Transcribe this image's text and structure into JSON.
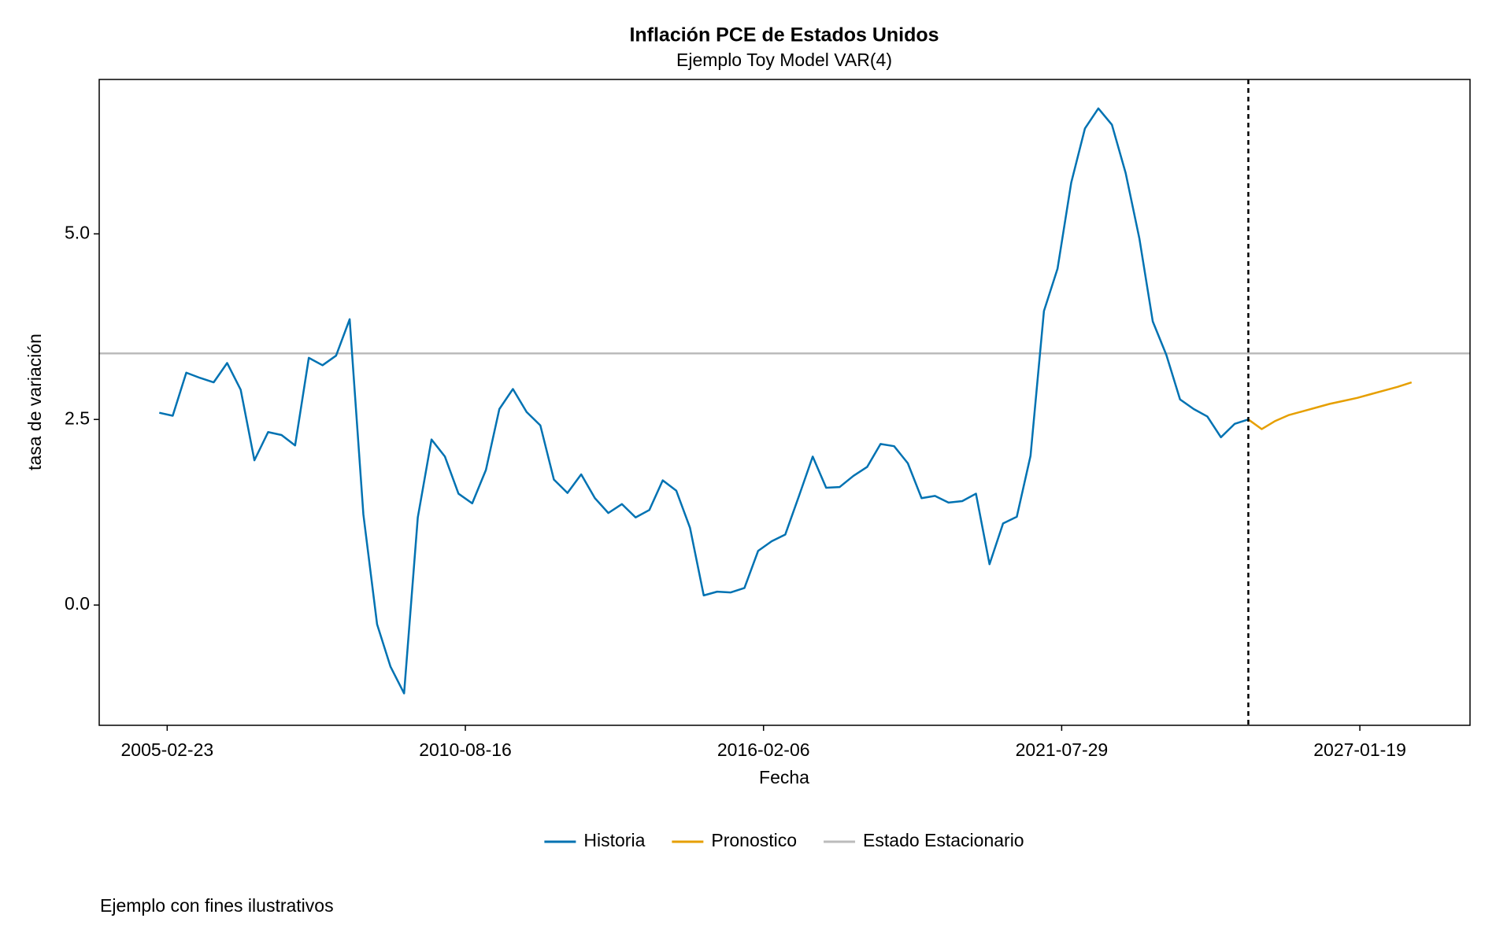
{
  "chart_data": {
    "type": "line",
    "title": "Inflación PCE de Estados Unidos",
    "subtitle": "Ejemplo Toy Model VAR(4)",
    "x_label": "Fecha",
    "y_label": "tasa de variación",
    "caption": "Ejemplo con fines ilustrativos",
    "xlim": [
      "2003-11-25",
      "2029-01-27"
    ],
    "xticks": [
      "2005-02-23",
      "2010-08-16",
      "2016-02-06",
      "2021-07-29",
      "2027-01-19"
    ],
    "ylim": [
      -1.62,
      7.08
    ],
    "yticks": [
      {
        "value": 0,
        "label": "0.0"
      },
      {
        "value": 2.5,
        "label": "2.5"
      },
      {
        "value": 5,
        "label": "5.0"
      }
    ],
    "forecast_start": "2025-01-01",
    "series": [
      {
        "name": "Historia",
        "color": "#0072b2",
        "x": [
          "2005-01-01",
          "2005-04-01",
          "2005-07-01",
          "2005-10-01",
          "2006-01-01",
          "2006-04-01",
          "2006-07-01",
          "2006-10-01",
          "2007-01-01",
          "2007-04-01",
          "2007-07-01",
          "2007-10-01",
          "2008-01-01",
          "2008-04-01",
          "2008-07-01",
          "2008-10-01",
          "2009-01-01",
          "2009-04-01",
          "2009-07-01",
          "2009-10-01",
          "2010-01-01",
          "2010-04-01",
          "2010-07-01",
          "2010-10-01",
          "2011-01-01",
          "2011-04-01",
          "2011-07-01",
          "2011-10-01",
          "2012-01-01",
          "2012-04-01",
          "2012-07-01",
          "2012-10-01",
          "2013-01-01",
          "2013-04-01",
          "2013-07-01",
          "2013-10-01",
          "2014-01-01",
          "2014-04-01",
          "2014-07-01",
          "2014-10-01",
          "2015-01-01",
          "2015-04-01",
          "2015-07-01",
          "2015-10-01",
          "2016-01-01",
          "2016-04-01",
          "2016-07-01",
          "2016-10-01",
          "2017-01-01",
          "2017-04-01",
          "2017-07-01",
          "2017-10-01",
          "2018-01-01",
          "2018-04-01",
          "2018-07-01",
          "2018-10-01",
          "2019-01-01",
          "2019-04-01",
          "2019-07-01",
          "2019-10-01",
          "2020-01-01",
          "2020-04-01",
          "2020-07-01",
          "2020-10-01",
          "2021-01-01",
          "2021-04-01",
          "2021-07-01",
          "2021-10-01",
          "2022-01-01",
          "2022-04-01",
          "2022-07-01",
          "2022-10-01",
          "2023-01-01",
          "2023-04-01",
          "2023-07-01",
          "2023-10-01",
          "2024-01-01",
          "2024-04-01",
          "2024-07-01",
          "2024-10-01",
          "2025-01-01"
        ],
        "values": [
          2.59,
          2.55,
          3.13,
          3.06,
          3.0,
          3.26,
          2.9,
          1.95,
          2.33,
          2.29,
          2.15,
          3.33,
          3.23,
          3.36,
          3.85,
          1.22,
          -0.26,
          -0.83,
          -1.19,
          1.18,
          2.23,
          2.0,
          1.5,
          1.37,
          1.82,
          2.64,
          2.91,
          2.6,
          2.42,
          1.69,
          1.51,
          1.76,
          1.44,
          1.24,
          1.36,
          1.18,
          1.28,
          1.68,
          1.54,
          1.04,
          0.13,
          0.18,
          0.17,
          0.23,
          0.73,
          0.86,
          0.95,
          1.47,
          2.0,
          1.58,
          1.59,
          1.74,
          1.86,
          2.17,
          2.14,
          1.91,
          1.44,
          1.47,
          1.38,
          1.4,
          1.5,
          0.55,
          1.1,
          1.19,
          2.01,
          3.96,
          4.53,
          5.69,
          6.42,
          6.69,
          6.47,
          5.82,
          4.94,
          3.82,
          3.37,
          2.77,
          2.64,
          2.54,
          2.26,
          2.44,
          2.5
        ]
      },
      {
        "name": "Pronostico",
        "color": "#e69f00",
        "x": [
          "2025-01-01",
          "2025-04-01",
          "2025-07-01",
          "2025-10-01",
          "2026-01-01",
          "2026-04-01",
          "2026-07-01",
          "2026-10-01",
          "2027-01-01",
          "2027-04-01",
          "2027-07-01",
          "2027-10-01",
          "2028-01-01"
        ],
        "values": [
          2.5,
          2.37,
          2.48,
          2.56,
          2.61,
          2.66,
          2.71,
          2.75,
          2.79,
          2.84,
          2.89,
          2.94,
          3.0
        ]
      }
    ],
    "reference_lines": [
      {
        "name": "Estado Estacionario",
        "color": "#bbbbbb",
        "value": 3.39
      }
    ]
  }
}
